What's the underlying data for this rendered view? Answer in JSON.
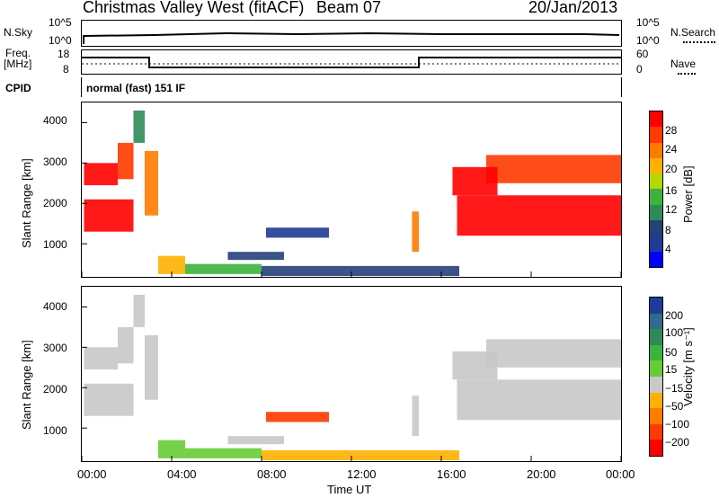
{
  "header": {
    "station": "Christmas Valley West (fitACF)",
    "beam": "Beam 07",
    "date": "20/Jan/2013"
  },
  "top": {
    "nsky_label": "N.Sky",
    "nsky_ticks": [
      "10^5",
      "10^0"
    ],
    "nsearch_label": "N.Search",
    "nsearch_ticks": [
      "10^5",
      "10^0"
    ],
    "freq_label": "Freq.",
    "freq_unit": "[MHz]",
    "freq_ticks": [
      "18",
      "8"
    ],
    "nave_label": "Nave",
    "nave_ticks": [
      "60",
      "0"
    ],
    "cpid_label": "CPID",
    "cpid_value": "normal (fast) 151 IF"
  },
  "chart_data": [
    {
      "type": "heatmap",
      "title": "Power",
      "ylabel": "Slant Range [km]",
      "xlabel": "Time UT",
      "xlim": [
        0,
        24
      ],
      "ylim": [
        180,
        4500
      ],
      "y_ticks": [
        "4000",
        "3000",
        "2000",
        "1000"
      ],
      "x_ticks": [
        "00:00",
        "04:00",
        "08:00",
        "12:00",
        "16:00",
        "20:00",
        "00:00"
      ],
      "colorbar_label": "Power [dB]",
      "colorbar_ticks": [
        "28",
        "24",
        "20",
        "16",
        "12",
        "8",
        "4"
      ],
      "colorbar_colors": [
        "#ff0000",
        "#ff3a00",
        "#ff7b00",
        "#ffb000",
        "#b4d800",
        "#3cb33c",
        "#2e8b57",
        "#26407a",
        "#1e3c96",
        "#0000ff"
      ],
      "regions": [
        {
          "t0": 0.1,
          "t1": 2.3,
          "r0": 1300,
          "r1": 2100,
          "v": "#ff0000"
        },
        {
          "t0": 0.1,
          "t1": 1.6,
          "r0": 2450,
          "r1": 3000,
          "v": "#ff0000"
        },
        {
          "t0": 1.6,
          "t1": 2.3,
          "r0": 2600,
          "r1": 3500,
          "v": "#ff3a00"
        },
        {
          "t0": 2.3,
          "t1": 2.8,
          "r0": 3500,
          "r1": 4300,
          "v": "#2e8b57"
        },
        {
          "t0": 2.8,
          "t1": 3.4,
          "r0": 1700,
          "r1": 3300,
          "v": "#ff7b00"
        },
        {
          "t0": 3.4,
          "t1": 4.6,
          "r0": 250,
          "r1": 700,
          "v": "#ffb000"
        },
        {
          "t0": 4.6,
          "t1": 8.0,
          "r0": 250,
          "r1": 500,
          "v": "#3cb33c"
        },
        {
          "t0": 8.0,
          "t1": 16.8,
          "r0": 200,
          "r1": 450,
          "v": "#26407a"
        },
        {
          "t0": 6.5,
          "t1": 9.0,
          "r0": 600,
          "r1": 800,
          "v": "#26407a"
        },
        {
          "t0": 8.2,
          "t1": 11.0,
          "r0": 1150,
          "r1": 1400,
          "v": "#1e3c96"
        },
        {
          "t0": 14.7,
          "t1": 15.0,
          "r0": 800,
          "r1": 1800,
          "v": "#ff7b00"
        },
        {
          "t0": 16.7,
          "t1": 24.0,
          "r0": 1200,
          "r1": 2200,
          "v": "#ff0000"
        },
        {
          "t0": 18.0,
          "t1": 24.0,
          "r0": 2500,
          "r1": 3200,
          "v": "#ff3a00"
        },
        {
          "t0": 16.5,
          "t1": 18.5,
          "r0": 2200,
          "r1": 2900,
          "v": "#ff0000"
        }
      ]
    },
    {
      "type": "heatmap",
      "title": "Velocity",
      "ylabel": "Slant Range [km]",
      "xlabel": "Time UT",
      "xlim": [
        0,
        24
      ],
      "ylim": [
        180,
        4500
      ],
      "y_ticks": [
        "4000",
        "3000",
        "2000",
        "1000"
      ],
      "x_ticks": [
        "00:00",
        "04:00",
        "08:00",
        "12:00",
        "16:00",
        "20:00",
        "00:00"
      ],
      "colorbar_label": "Velocity [m s⁻¹]",
      "colorbar_ticks": [
        "200",
        "100",
        "50",
        "15",
        "−15",
        "−50",
        "−100",
        "−200"
      ],
      "colorbar_colors": [
        "#1e3c96",
        "#2e6b8f",
        "#2e8b57",
        "#3cb33c",
        "#66cc33",
        "#c8c8c8",
        "#ffb000",
        "#ff7b00",
        "#ff3a00",
        "#ff0000"
      ],
      "regions": [
        {
          "t0": 0.1,
          "t1": 2.3,
          "r0": 1300,
          "r1": 2100,
          "v": "#c8c8c8"
        },
        {
          "t0": 0.1,
          "t1": 1.6,
          "r0": 2450,
          "r1": 3000,
          "v": "#c8c8c8"
        },
        {
          "t0": 1.6,
          "t1": 2.3,
          "r0": 2600,
          "r1": 3500,
          "v": "#c8c8c8"
        },
        {
          "t0": 2.3,
          "t1": 2.8,
          "r0": 3500,
          "r1": 4300,
          "v": "#c8c8c8"
        },
        {
          "t0": 2.8,
          "t1": 3.4,
          "r0": 1700,
          "r1": 3300,
          "v": "#c8c8c8"
        },
        {
          "t0": 3.4,
          "t1": 4.6,
          "r0": 250,
          "r1": 700,
          "v": "#66cc33"
        },
        {
          "t0": 4.6,
          "t1": 8.0,
          "r0": 250,
          "r1": 500,
          "v": "#66cc33"
        },
        {
          "t0": 8.0,
          "t1": 16.8,
          "r0": 200,
          "r1": 450,
          "v": "#ffb000"
        },
        {
          "t0": 6.5,
          "t1": 9.0,
          "r0": 600,
          "r1": 800,
          "v": "#c8c8c8"
        },
        {
          "t0": 8.2,
          "t1": 11.0,
          "r0": 1150,
          "r1": 1400,
          "v": "#ff3a00"
        },
        {
          "t0": 14.7,
          "t1": 15.0,
          "r0": 800,
          "r1": 1800,
          "v": "#c8c8c8"
        },
        {
          "t0": 16.7,
          "t1": 24.0,
          "r0": 1200,
          "r1": 2200,
          "v": "#c8c8c8"
        },
        {
          "t0": 18.0,
          "t1": 24.0,
          "r0": 2500,
          "r1": 3200,
          "v": "#c8c8c8"
        },
        {
          "t0": 16.5,
          "t1": 18.5,
          "r0": 2200,
          "r1": 2900,
          "v": "#c8c8c8"
        }
      ]
    }
  ]
}
